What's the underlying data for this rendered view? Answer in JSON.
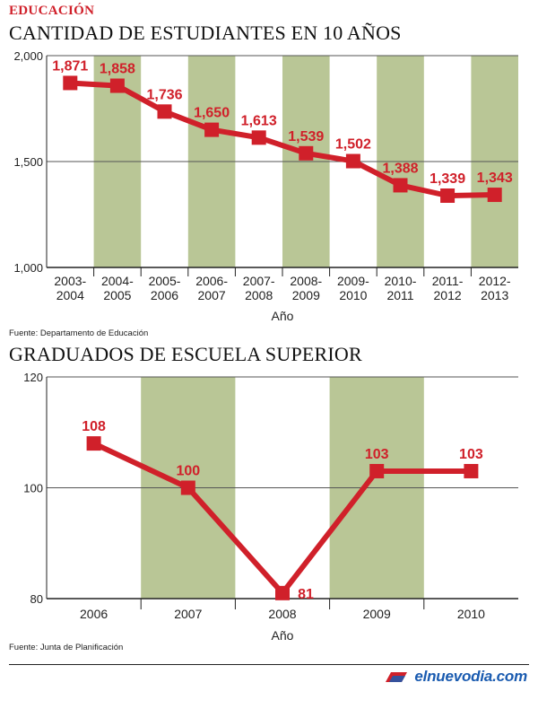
{
  "section": "EDUCACIÓN",
  "colors": {
    "line": "#d0202a",
    "band": "#b9c696",
    "grid": "#555555"
  },
  "charts": [
    {
      "title": "CANTIDAD DE ESTUDIANTES EN 10 AÑOS",
      "source": "Fuente: Departamento de Educación"
    },
    {
      "title": "GRADUADOS DE ESCUELA SUPERIOR",
      "source": "Fuente: Junta de Planificación"
    }
  ],
  "logo": {
    "text": "elnuevodia.com"
  },
  "chart_data": [
    {
      "type": "line",
      "title": "CANTIDAD DE ESTUDIANTES EN 10 AÑOS",
      "xlabel": "Año",
      "ylabel": "",
      "ylim": [
        1000,
        2000
      ],
      "yticks": [
        "1,000",
        "1,500",
        "2,000"
      ],
      "ytick_values": [
        1000,
        1500,
        2000
      ],
      "categories": [
        [
          "2003-",
          "2004"
        ],
        [
          "2004-",
          "2005"
        ],
        [
          "2005-",
          "2006"
        ],
        [
          "2006-",
          "2007"
        ],
        [
          "2007-",
          "2008"
        ],
        [
          "2008-",
          "2009"
        ],
        [
          "2009-",
          "2010"
        ],
        [
          "2010-",
          "2011"
        ],
        [
          "2011-",
          "2012"
        ],
        [
          "2012-",
          "2013"
        ]
      ],
      "values": [
        1871,
        1858,
        1736,
        1650,
        1613,
        1539,
        1502,
        1388,
        1339,
        1343
      ],
      "labels": [
        "1,871",
        "1,858",
        "1,736",
        "1,650",
        "1,613",
        "1,539",
        "1,502",
        "1,388",
        "1,339",
        "1,343"
      ],
      "shaded_categories": [
        1,
        3,
        5,
        7,
        9
      ],
      "grid": true
    },
    {
      "type": "line",
      "title": "GRADUADOS DE ESCUELA SUPERIOR",
      "xlabel": "Año",
      "ylabel": "",
      "ylim": [
        80,
        120
      ],
      "yticks": [
        "80",
        "100",
        "120"
      ],
      "ytick_values": [
        80,
        100,
        120
      ],
      "categories": [
        [
          "2006"
        ],
        [
          "2007"
        ],
        [
          "2008"
        ],
        [
          "2009"
        ],
        [
          "2010"
        ]
      ],
      "values": [
        108,
        100,
        81,
        103,
        103
      ],
      "labels": [
        "108",
        "100",
        "81",
        "103",
        "103"
      ],
      "shaded_categories": [
        1,
        3
      ],
      "grid": true
    }
  ]
}
